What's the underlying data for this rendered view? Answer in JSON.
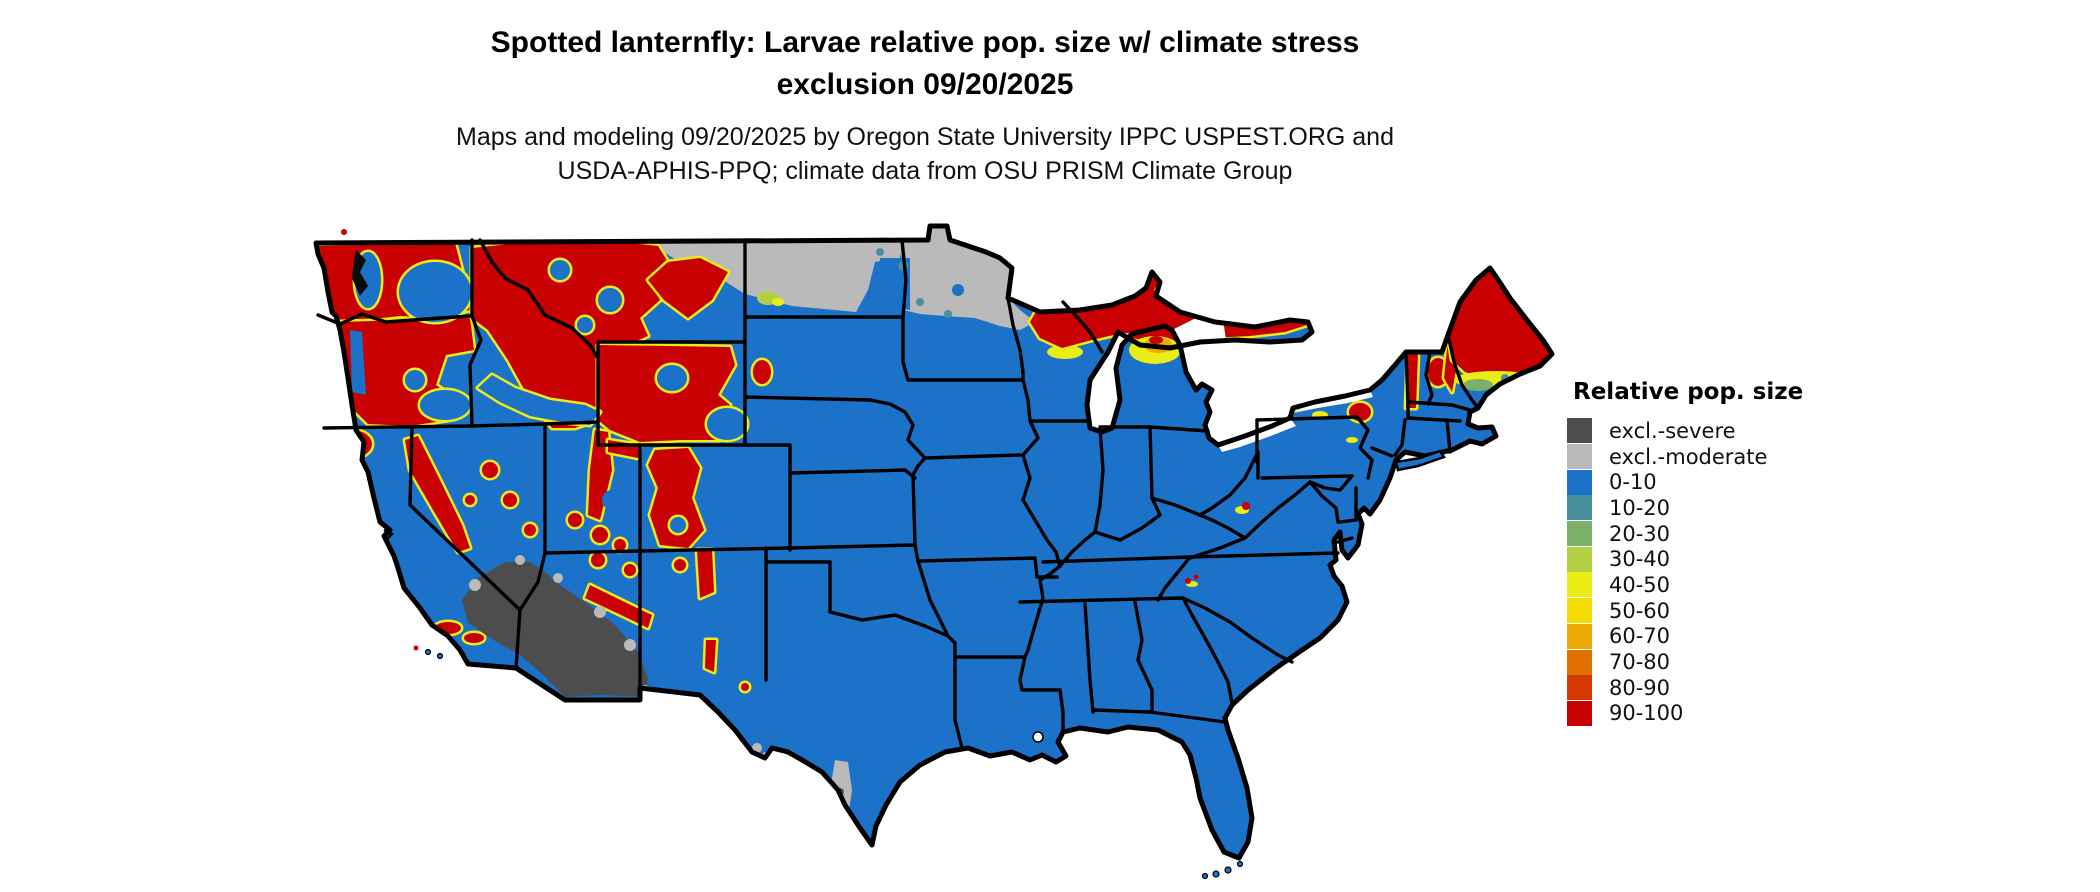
{
  "header": {
    "title_line1": "Spotted lanternfly: Larvae relative pop. size w/ climate stress",
    "title_line2": "exclusion 09/20/2025",
    "subtitle_line1": "Maps and modeling 09/20/2025 by Oregon State University IPPC USPEST.ORG and",
    "subtitle_line2": "USDA-APHIS-PPQ; climate data from OSU PRISM Climate Group"
  },
  "legend": {
    "title": "Relative pop. size",
    "items": [
      {
        "label": "excl.-severe",
        "color_key": "excl_severe"
      },
      {
        "label": "excl.-moderate",
        "color_key": "excl_moderate"
      },
      {
        "label": "0-10",
        "color_key": "c0_10"
      },
      {
        "label": "10-20",
        "color_key": "c10_20"
      },
      {
        "label": "20-30",
        "color_key": "c20_30"
      },
      {
        "label": "30-40",
        "color_key": "c30_40"
      },
      {
        "label": "40-50",
        "color_key": "c40_50"
      },
      {
        "label": "50-60",
        "color_key": "c50_60"
      },
      {
        "label": "60-70",
        "color_key": "c60_70"
      },
      {
        "label": "70-80",
        "color_key": "c70_80"
      },
      {
        "label": "80-90",
        "color_key": "c80_90"
      },
      {
        "label": "90-100",
        "color_key": "c90_100"
      }
    ]
  },
  "colors": {
    "excl_severe": "#4d4d4d",
    "excl_moderate": "#bababa",
    "c0_10": "#1b72c8",
    "c10_20": "#4a909c",
    "c20_30": "#7cb06a",
    "c30_40": "#b4cf44",
    "c40_50": "#e9ec15",
    "c50_60": "#f5dc00",
    "c60_70": "#eca904",
    "c70_80": "#e17101",
    "c80_90": "#d53802",
    "c90_100": "#c90002",
    "border": "#000000",
    "water": "#ffffff"
  },
  "map": {
    "kind": "CONUS raster map with state boundaries",
    "regions_summary": [
      {
        "area": "Cascades, Northern Rockies (WA/OR/ID/MT), Sierra Nevada, Utah-Colorado high country",
        "class": "90-100"
      },
      {
        "area": "Columbia Basin, California Central Valley, Great Plains, Midwest, South and East",
        "class": "0-10"
      },
      {
        "area": "North Dakota, northern Minnesota, northeastern Montana",
        "class": "excl.-moderate"
      },
      {
        "area": "Southwestern Arizona, southeastern California desert, southern Nevada",
        "class": "excl.-severe"
      },
      {
        "area": "Upper Peninsula of Michigan and northern Wisconsin",
        "class": "90-100"
      },
      {
        "area": "Adirondacks, Green/White Mountains, northern Maine",
        "class": "90-100"
      },
      {
        "area": "South Texas along Rio Grande",
        "class": "excl.-moderate"
      },
      {
        "area": "Northern lower Michigan, mid-Maine band",
        "class": "40-70"
      }
    ]
  }
}
